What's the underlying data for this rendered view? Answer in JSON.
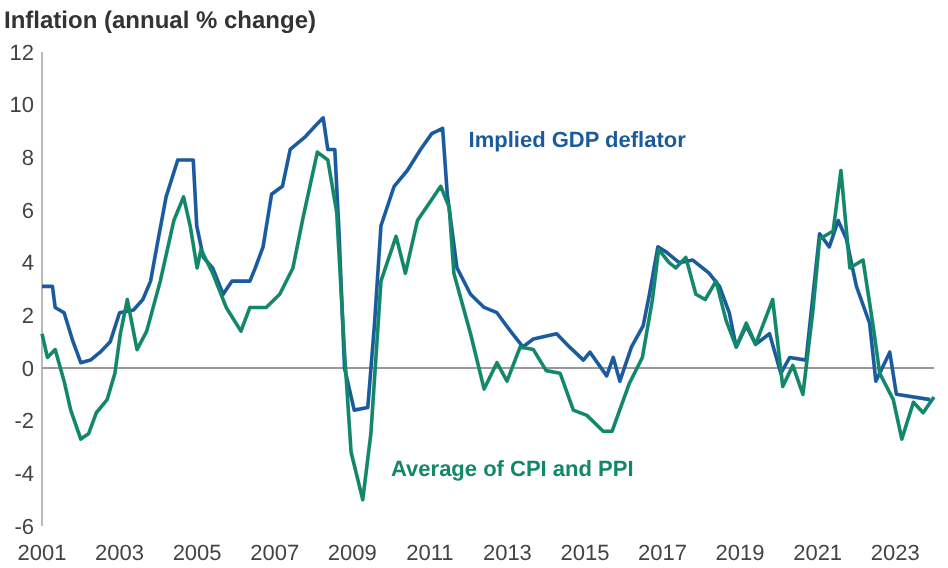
{
  "chart_data": {
    "type": "line",
    "title": "Inflation (annual % change)",
    "xlim": [
      2001,
      2024
    ],
    "xticks": [
      2001,
      2003,
      2005,
      2007,
      2009,
      2011,
      2013,
      2015,
      2017,
      2019,
      2021,
      2023
    ],
    "ylim": [
      -6,
      12
    ],
    "yticks": [
      -6,
      -4,
      -2,
      0,
      2,
      4,
      6,
      8,
      10,
      12
    ],
    "grid": false,
    "marker": "none",
    "line_style": "solid",
    "ref_lines": [
      {
        "axis": "y",
        "value": 0,
        "color": "#999999"
      }
    ],
    "series": [
      {
        "name": "Implied GDP deflator",
        "color": "#1a5a9e",
        "x": [
          2001,
          2001.27,
          2001.34,
          2001.57,
          2001.8,
          2002.0,
          2002.25,
          2002.5,
          2002.76,
          2003.0,
          2003.36,
          2003.6,
          2003.8,
          2003.96,
          2004.2,
          2004.5,
          2004.9,
          2004.99,
          2005.16,
          2005.4,
          2005.67,
          2005.9,
          2006.36,
          2006.5,
          2006.7,
          2006.92,
          2007.2,
          2007.4,
          2007.8,
          2008.05,
          2008.25,
          2008.37,
          2008.55,
          2008.66,
          2008.8,
          2009.05,
          2009.4,
          2009.57,
          2009.74,
          2010.08,
          2010.42,
          2010.76,
          2011.05,
          2011.33,
          2011.45,
          2011.7,
          2012.05,
          2012.4,
          2012.73,
          2013.08,
          2013.4,
          2013.67,
          2014.27,
          2014.6,
          2014.96,
          2015.13,
          2015.56,
          2015.73,
          2015.9,
          2016.2,
          2016.5,
          2016.65,
          2016.88,
          2017.1,
          2017.43,
          2017.78,
          2018.2,
          2018.47,
          2018.72,
          2018.9,
          2019.16,
          2019.4,
          2019.76,
          2020.05,
          2020.28,
          2020.7,
          2021.05,
          2021.3,
          2021.53,
          2021.74,
          2022.0,
          2022.34,
          2022.5,
          2022.86,
          2023.03,
          2023.9
        ],
        "values": [
          3.1,
          3.1,
          2.3,
          2.1,
          1.0,
          0.2,
          0.3,
          0.6,
          1.0,
          2.1,
          2.2,
          2.6,
          3.3,
          4.6,
          6.5,
          7.9,
          7.9,
          5.4,
          4.2,
          3.8,
          2.8,
          3.3,
          3.3,
          3.8,
          4.6,
          6.6,
          6.9,
          8.3,
          8.8,
          9.2,
          9.5,
          8.3,
          8.3,
          5.1,
          0,
          -1.6,
          -1.5,
          1.6,
          5.4,
          6.9,
          7.5,
          8.3,
          8.9,
          9.1,
          6.6,
          3.8,
          2.8,
          2.3,
          2.1,
          1.4,
          0.8,
          1.1,
          1.3,
          0.8,
          0.3,
          0.6,
          -0.3,
          0.4,
          -0.5,
          0.8,
          1.6,
          2.7,
          4.6,
          4.4,
          4.0,
          4.1,
          3.6,
          3.1,
          2.1,
          0.8,
          1.6,
          0.9,
          1.3,
          -0.2,
          0.4,
          0.3,
          5.1,
          4.6,
          5.6,
          4.9,
          3.1,
          1.7,
          -0.5,
          0.6,
          -1.0,
          -1.2
        ]
      },
      {
        "name": "Average of CPI and PPI",
        "color": "#12876a",
        "x": [
          2001,
          2001.14,
          2001.34,
          2001.57,
          2001.74,
          2002.0,
          2002.2,
          2002.4,
          2002.68,
          2002.88,
          2003.02,
          2003.2,
          2003.45,
          2003.7,
          2004.05,
          2004.4,
          2004.65,
          2004.82,
          2005.0,
          2005.1,
          2005.4,
          2005.75,
          2006.13,
          2006.36,
          2006.78,
          2007.13,
          2007.47,
          2007.73,
          2008.1,
          2008.37,
          2008.6,
          2008.8,
          2008.97,
          2009.27,
          2009.48,
          2009.74,
          2010.13,
          2010.37,
          2010.68,
          2011.05,
          2011.28,
          2011.5,
          2011.62,
          2012.05,
          2012.4,
          2012.73,
          2012.99,
          2013.33,
          2013.67,
          2014.0,
          2014.36,
          2014.7,
          2015.05,
          2015.47,
          2015.7,
          2016.14,
          2016.48,
          2016.74,
          2016.9,
          2017.17,
          2017.34,
          2017.6,
          2017.86,
          2018.1,
          2018.38,
          2018.64,
          2018.9,
          2019.16,
          2019.4,
          2019.84,
          2020.1,
          2020.36,
          2020.62,
          2020.88,
          2021.05,
          2021.4,
          2021.6,
          2021.83,
          2022.17,
          2022.43,
          2022.6,
          2022.95,
          2023.17,
          2023.47,
          2023.72,
          2024.0
        ],
        "values": [
          1.3,
          0.4,
          0.7,
          -0.5,
          -1.6,
          -2.7,
          -2.5,
          -1.7,
          -1.2,
          -0.2,
          1.3,
          2.6,
          0.7,
          1.4,
          3.3,
          5.6,
          6.5,
          5.4,
          3.8,
          4.5,
          3.6,
          2.3,
          1.4,
          2.3,
          2.3,
          2.8,
          3.8,
          5.7,
          8.2,
          7.9,
          5.9,
          0.6,
          -3.2,
          -5.0,
          -2.5,
          3.3,
          5.0,
          3.6,
          5.6,
          6.4,
          6.9,
          6.1,
          3.6,
          1.3,
          -0.8,
          0.2,
          -0.5,
          0.8,
          0.7,
          -0.1,
          -0.2,
          -1.6,
          -1.8,
          -2.4,
          -2.4,
          -0.6,
          0.4,
          2.6,
          4.5,
          4.0,
          3.8,
          4.2,
          2.8,
          2.6,
          3.3,
          1.8,
          0.8,
          1.7,
          0.9,
          2.6,
          -0.7,
          0.1,
          -1.0,
          2.2,
          4.9,
          5.2,
          7.5,
          3.8,
          4.1,
          1.6,
          -0.2,
          -1.2,
          -2.7,
          -1.3,
          -1.7,
          -1.1
        ]
      }
    ]
  }
}
